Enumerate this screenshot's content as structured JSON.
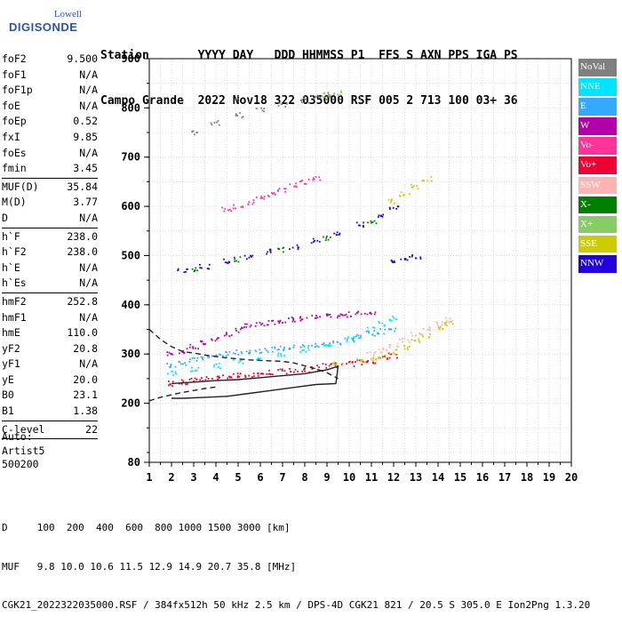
{
  "logo": {
    "line1": "Lowell",
    "line2": "DIGISONDE"
  },
  "header": {
    "labels": "Station       YYYY DAY   DDD HHMMSS P1  FFS S AXN PPS IGA PS",
    "values": "Campo Grande  2022 Nov18 322 035000 RSF 005 2 713 100 03+ 36"
  },
  "params": [
    {
      "label": "foF2",
      "value": "9.500"
    },
    {
      "label": "foF1",
      "value": "N/A"
    },
    {
      "label": "foF1p",
      "value": "N/A"
    },
    {
      "label": "foE",
      "value": "N/A"
    },
    {
      "label": "foEp",
      "value": "0.52"
    },
    {
      "label": "fxI",
      "value": "9.85"
    },
    {
      "label": "foEs",
      "value": "N/A"
    },
    {
      "label": "fmin",
      "value": "3.45"
    },
    {
      "sep": true
    },
    {
      "label": "MUF(D)",
      "value": "35.84"
    },
    {
      "label": "M(D)",
      "value": "3.77"
    },
    {
      "label": "D",
      "value": "N/A"
    },
    {
      "sep": true
    },
    {
      "label": "h`F",
      "value": "238.0"
    },
    {
      "label": "h`F2",
      "value": "238.0"
    },
    {
      "label": "h`E",
      "value": "N/A"
    },
    {
      "label": "h`Es",
      "value": "N/A"
    },
    {
      "sep": true
    },
    {
      "label": "hmF2",
      "value": "252.8"
    },
    {
      "label": "hmF1",
      "value": "N/A"
    },
    {
      "label": "hmE",
      "value": "110.0"
    },
    {
      "label": "yF2",
      "value": "20.8"
    },
    {
      "label": "yF1",
      "value": "N/A"
    },
    {
      "label": "yE",
      "value": "20.0"
    },
    {
      "label": "B0",
      "value": "23.1"
    },
    {
      "label": "B1",
      "value": "1.38"
    },
    {
      "sep": true
    },
    {
      "label": "C-level",
      "value": "22"
    },
    {
      "sep": true
    }
  ],
  "auto": {
    "l1": "Auto:",
    "l2": "Artist5",
    "l3": "500200"
  },
  "legend": [
    {
      "label": "NoVal",
      "color": "#808080"
    },
    {
      "label": "NNE",
      "color": "#00e5ff"
    },
    {
      "label": "E",
      "color": "#33aaff"
    },
    {
      "label": "W",
      "color": "#b400aa"
    },
    {
      "label": "Vo-",
      "color": "#ff3399"
    },
    {
      "label": "Vo+",
      "color": "#ee0033"
    },
    {
      "label": "SSW",
      "color": "#ffb3b3"
    },
    {
      "label": "X-",
      "color": "#008000"
    },
    {
      "label": "X+",
      "color": "#88cc66"
    },
    {
      "label": "SSE",
      "color": "#cccc00"
    },
    {
      "label": "NNW",
      "color": "#2200dd"
    }
  ],
  "footer": {
    "line1": "D     100  200  400  600  800 1000 1500 3000 [km]",
    "line2": "MUF   9.8 10.0 10.6 11.5 12.9 14.9 20.7 35.8 [MHz]",
    "line3": "CGK21_2022322035000.RSF / 384fx512h 50 kHz 2.5 km / DPS-4D CGK21 821 / 20.5 S 305.0 E Ion2Png 1.3.20"
  },
  "chart_data": {
    "type": "scatter",
    "title": "",
    "xlabel": "",
    "ylabel": "",
    "xlim": [
      1,
      20
    ],
    "ylim": [
      80,
      900
    ],
    "x_ticks": [
      1,
      2,
      3,
      4,
      5,
      6,
      7,
      8,
      9,
      10,
      11,
      12,
      13,
      14,
      15,
      16,
      17,
      18,
      19,
      20
    ],
    "y_ticks": [
      80,
      200,
      300,
      400,
      500,
      600,
      700,
      800,
      900
    ],
    "grid": true,
    "series": [
      {
        "name": "W",
        "color": "#b400aa",
        "points": [
          [
            2.0,
            300
          ],
          [
            2.5,
            306
          ],
          [
            3.0,
            314
          ],
          [
            3.5,
            322
          ],
          [
            4.0,
            331
          ],
          [
            4.5,
            340
          ],
          [
            5.0,
            349
          ],
          [
            5.5,
            356
          ],
          [
            6.0,
            360
          ],
          [
            6.5,
            364
          ],
          [
            7.0,
            368
          ],
          [
            7.5,
            370
          ],
          [
            8.0,
            372
          ],
          [
            8.5,
            374
          ],
          [
            9.0,
            376
          ],
          [
            9.5,
            378
          ],
          [
            10.0,
            380
          ],
          [
            10.5,
            382
          ],
          [
            11.0,
            384
          ]
        ]
      },
      {
        "name": "E",
        "color": "#33aaff",
        "points": [
          [
            2.0,
            278
          ],
          [
            2.5,
            282
          ],
          [
            3.0,
            287
          ],
          [
            3.5,
            292
          ],
          [
            4.0,
            297
          ],
          [
            4.5,
            300
          ],
          [
            5.0,
            303
          ],
          [
            5.5,
            305
          ],
          [
            6.0,
            307
          ],
          [
            6.5,
            309
          ],
          [
            7.0,
            311
          ],
          [
            7.5,
            313
          ],
          [
            8.0,
            315
          ],
          [
            8.5,
            317
          ],
          [
            9.0,
            320
          ],
          [
            9.5,
            323
          ],
          [
            10.0,
            330
          ],
          [
            10.5,
            336
          ],
          [
            11.0,
            341
          ],
          [
            11.5,
            346
          ],
          [
            12.0,
            350
          ]
        ]
      },
      {
        "name": "NNE",
        "color": "#00e5ff",
        "points": [
          [
            2.0,
            262
          ],
          [
            3.0,
            268
          ],
          [
            4.0,
            276
          ],
          [
            5.0,
            285
          ],
          [
            6.0,
            292
          ],
          [
            7.0,
            300
          ],
          [
            8.0,
            308
          ],
          [
            9.0,
            315
          ],
          [
            10.0,
            330
          ],
          [
            11.0,
            350
          ],
          [
            11.5,
            362
          ],
          [
            12.0,
            372
          ]
        ]
      },
      {
        "name": "Vo+",
        "color": "#ee0033",
        "points": [
          [
            2.0,
            240
          ],
          [
            2.5,
            243
          ],
          [
            3.0,
            246
          ],
          [
            3.5,
            249
          ],
          [
            4.0,
            252
          ],
          [
            4.5,
            254
          ],
          [
            5.0,
            256
          ],
          [
            5.5,
            258
          ],
          [
            6.0,
            260
          ],
          [
            6.5,
            262
          ],
          [
            7.0,
            264
          ],
          [
            7.5,
            266
          ],
          [
            8.0,
            268
          ],
          [
            8.5,
            272
          ],
          [
            9.0,
            276
          ],
          [
            9.5,
            278
          ],
          [
            10.0,
            280
          ],
          [
            10.5,
            283
          ],
          [
            11.0,
            286
          ],
          [
            11.5,
            291
          ],
          [
            12.0,
            297
          ]
        ]
      },
      {
        "name": "SSW",
        "color": "#ffb3b3",
        "points": [
          [
            11.0,
            300
          ],
          [
            11.5,
            308
          ],
          [
            12.0,
            318
          ],
          [
            12.5,
            328
          ],
          [
            13.0,
            340
          ],
          [
            13.5,
            352
          ],
          [
            14.0,
            362
          ],
          [
            14.5,
            370
          ]
        ]
      },
      {
        "name": "SSE",
        "color": "#cccc00",
        "points": [
          [
            9.5,
            283
          ],
          [
            10.5,
            285
          ],
          [
            11.0,
            290
          ],
          [
            11.5,
            296
          ],
          [
            12.0,
            304
          ],
          [
            12.5,
            314
          ],
          [
            13.0,
            326
          ],
          [
            13.5,
            338
          ],
          [
            14.0,
            350
          ],
          [
            14.5,
            362
          ],
          [
            12.0,
            610
          ],
          [
            12.5,
            625
          ],
          [
            13.0,
            640
          ],
          [
            13.5,
            655
          ]
        ]
      },
      {
        "name": "NNW",
        "color": "#2200dd",
        "points": [
          [
            2.5,
            470
          ],
          [
            3.5,
            478
          ],
          [
            4.5,
            488
          ],
          [
            5.5,
            498
          ],
          [
            6.5,
            508
          ],
          [
            7.5,
            518
          ],
          [
            8.5,
            530
          ],
          [
            9.5,
            545
          ],
          [
            10.5,
            562
          ],
          [
            11.5,
            580
          ],
          [
            12.0,
            598
          ],
          [
            12.0,
            490
          ],
          [
            12.5,
            493
          ],
          [
            13.0,
            497
          ]
        ]
      },
      {
        "name": "X-",
        "color": "#008000",
        "points": [
          [
            3.0,
            472
          ],
          [
            5.0,
            492
          ],
          [
            7.0,
            512
          ],
          [
            9.0,
            536
          ],
          [
            11.0,
            570
          ]
        ]
      },
      {
        "name": "Vo-",
        "color": "#ff3399",
        "points": [
          [
            4.5,
            595
          ],
          [
            5.0,
            600
          ],
          [
            5.5,
            608
          ],
          [
            6.0,
            616
          ],
          [
            6.5,
            625
          ],
          [
            7.0,
            633
          ],
          [
            7.5,
            642
          ],
          [
            8.0,
            650
          ],
          [
            8.5,
            658
          ]
        ]
      },
      {
        "name": "NoVal",
        "color": "#808080",
        "points": [
          [
            3.0,
            750
          ],
          [
            4.0,
            770
          ],
          [
            5.0,
            785
          ],
          [
            6.0,
            795
          ],
          [
            7.0,
            805
          ],
          [
            8.0,
            815
          ],
          [
            8.5,
            820
          ],
          [
            9.0,
            826
          ]
        ]
      },
      {
        "name": "X+",
        "color": "#88cc66",
        "points": [
          [
            9.0,
            826
          ],
          [
            9.5,
            830
          ]
        ]
      }
    ],
    "trace_curves": [
      {
        "name": "solid",
        "style": "solid",
        "points": [
          [
            2.0,
            240
          ],
          [
            3.0,
            243
          ],
          [
            4.0,
            246
          ],
          [
            5.0,
            248
          ],
          [
            6.0,
            252
          ],
          [
            7.0,
            256
          ],
          [
            8.0,
            260
          ],
          [
            9.0,
            268
          ],
          [
            9.5,
            275
          ],
          [
            9.4,
            240
          ],
          [
            8.5,
            238
          ],
          [
            7.5,
            232
          ],
          [
            6.5,
            226
          ],
          [
            5.5,
            220
          ],
          [
            4.5,
            214
          ],
          [
            3.5,
            212
          ],
          [
            2.5,
            210
          ],
          [
            2.0,
            210
          ]
        ]
      },
      {
        "name": "dashed",
        "style": "dashed",
        "points": [
          [
            1.0,
            350
          ],
          [
            1.5,
            330
          ],
          [
            2.0,
            315
          ],
          [
            2.5,
            305
          ],
          [
            3.0,
            302
          ],
          [
            3.5,
            298
          ],
          [
            4.0,
            295
          ],
          [
            4.5,
            292
          ],
          [
            5.0,
            290
          ],
          [
            5.5,
            288
          ],
          [
            6.0,
            287
          ],
          [
            6.5,
            286
          ],
          [
            7.0,
            285
          ],
          [
            7.5,
            282
          ],
          [
            8.0,
            276
          ],
          [
            8.5,
            270
          ],
          [
            9.0,
            262
          ],
          [
            9.5,
            250
          ]
        ]
      },
      {
        "name": "dashed-low",
        "style": "dashed",
        "points": [
          [
            1.0,
            205
          ],
          [
            1.5,
            212
          ],
          [
            2.0,
            217
          ],
          [
            2.5,
            222
          ],
          [
            3.0,
            226
          ],
          [
            3.5,
            230
          ],
          [
            4.0,
            233
          ]
        ]
      }
    ]
  }
}
